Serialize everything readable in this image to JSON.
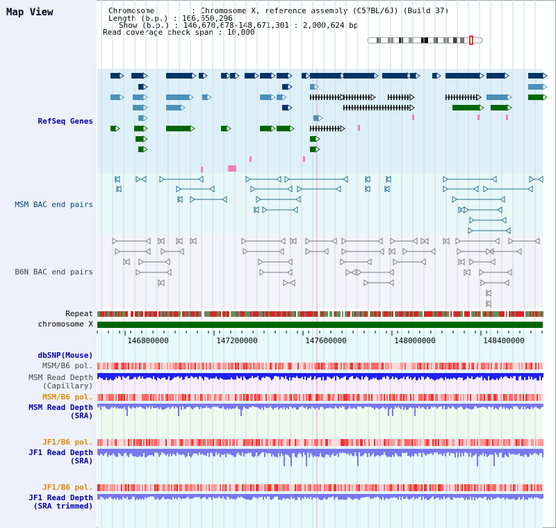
{
  "app": {
    "title": "Map View"
  },
  "header": {
    "chromosome": "Chromosome        : Chromosome X, reference assembly (C57BL/6J) (Build 37)",
    "length": "Length (b.p.) : 166,650,296",
    "show": "Show (b.p.) : 146,670,678-148,671,301 : 2,000,624 bp",
    "coverage": "Read coverage check span : 10,000"
  },
  "tracks": {
    "refseq": "RefSeq Genes",
    "msm_bac": "MSM BAC end pairs",
    "b6n_bac": "B6N BAC end pairs",
    "repeat": "Repeat",
    "chromosome": "chromosome X",
    "dbsnp": "dbSNP(Mouse)",
    "msm_pol1": "MSM/B6 pol.",
    "msm_depth_cap_1": "MSM Read Depth",
    "msm_depth_cap_2": "(Capillary)",
    "msm_pol2": "MSM/B6 pol.",
    "msm_depth_sra_1": "MSM Read Depth",
    "msm_depth_sra_2": "(SRA)",
    "jf1_pol1": "JF1/B6 pol.",
    "jf1_depth_sra_1": "JF1 Read Depth",
    "jf1_depth_sra_2": "(SRA)",
    "jf1_pol2": "JF1/B6 pol.",
    "jf1_depth_trim_1": "JF1 Read Depth",
    "jf1_depth_trim_2": "(SRA trimmed)"
  },
  "axis": {
    "ticks": [
      "146800000",
      "147200000",
      "147600000",
      "148000000",
      "148400000"
    ]
  },
  "colors": {
    "refseq_bg": "#ddf0f8",
    "msm_bg": "#e8f8f8",
    "b6n_bg": "#f3f3f8",
    "gene_navy": "#003366",
    "gene_steel": "#4a90b8",
    "gene_green": "#006600",
    "bac_teal": "#1f6f8b",
    "bac_gray": "#777777",
    "depth_blue": "#2020ee",
    "depth_light": "#7777ee",
    "pol_red": "#ee6a6a"
  }
}
